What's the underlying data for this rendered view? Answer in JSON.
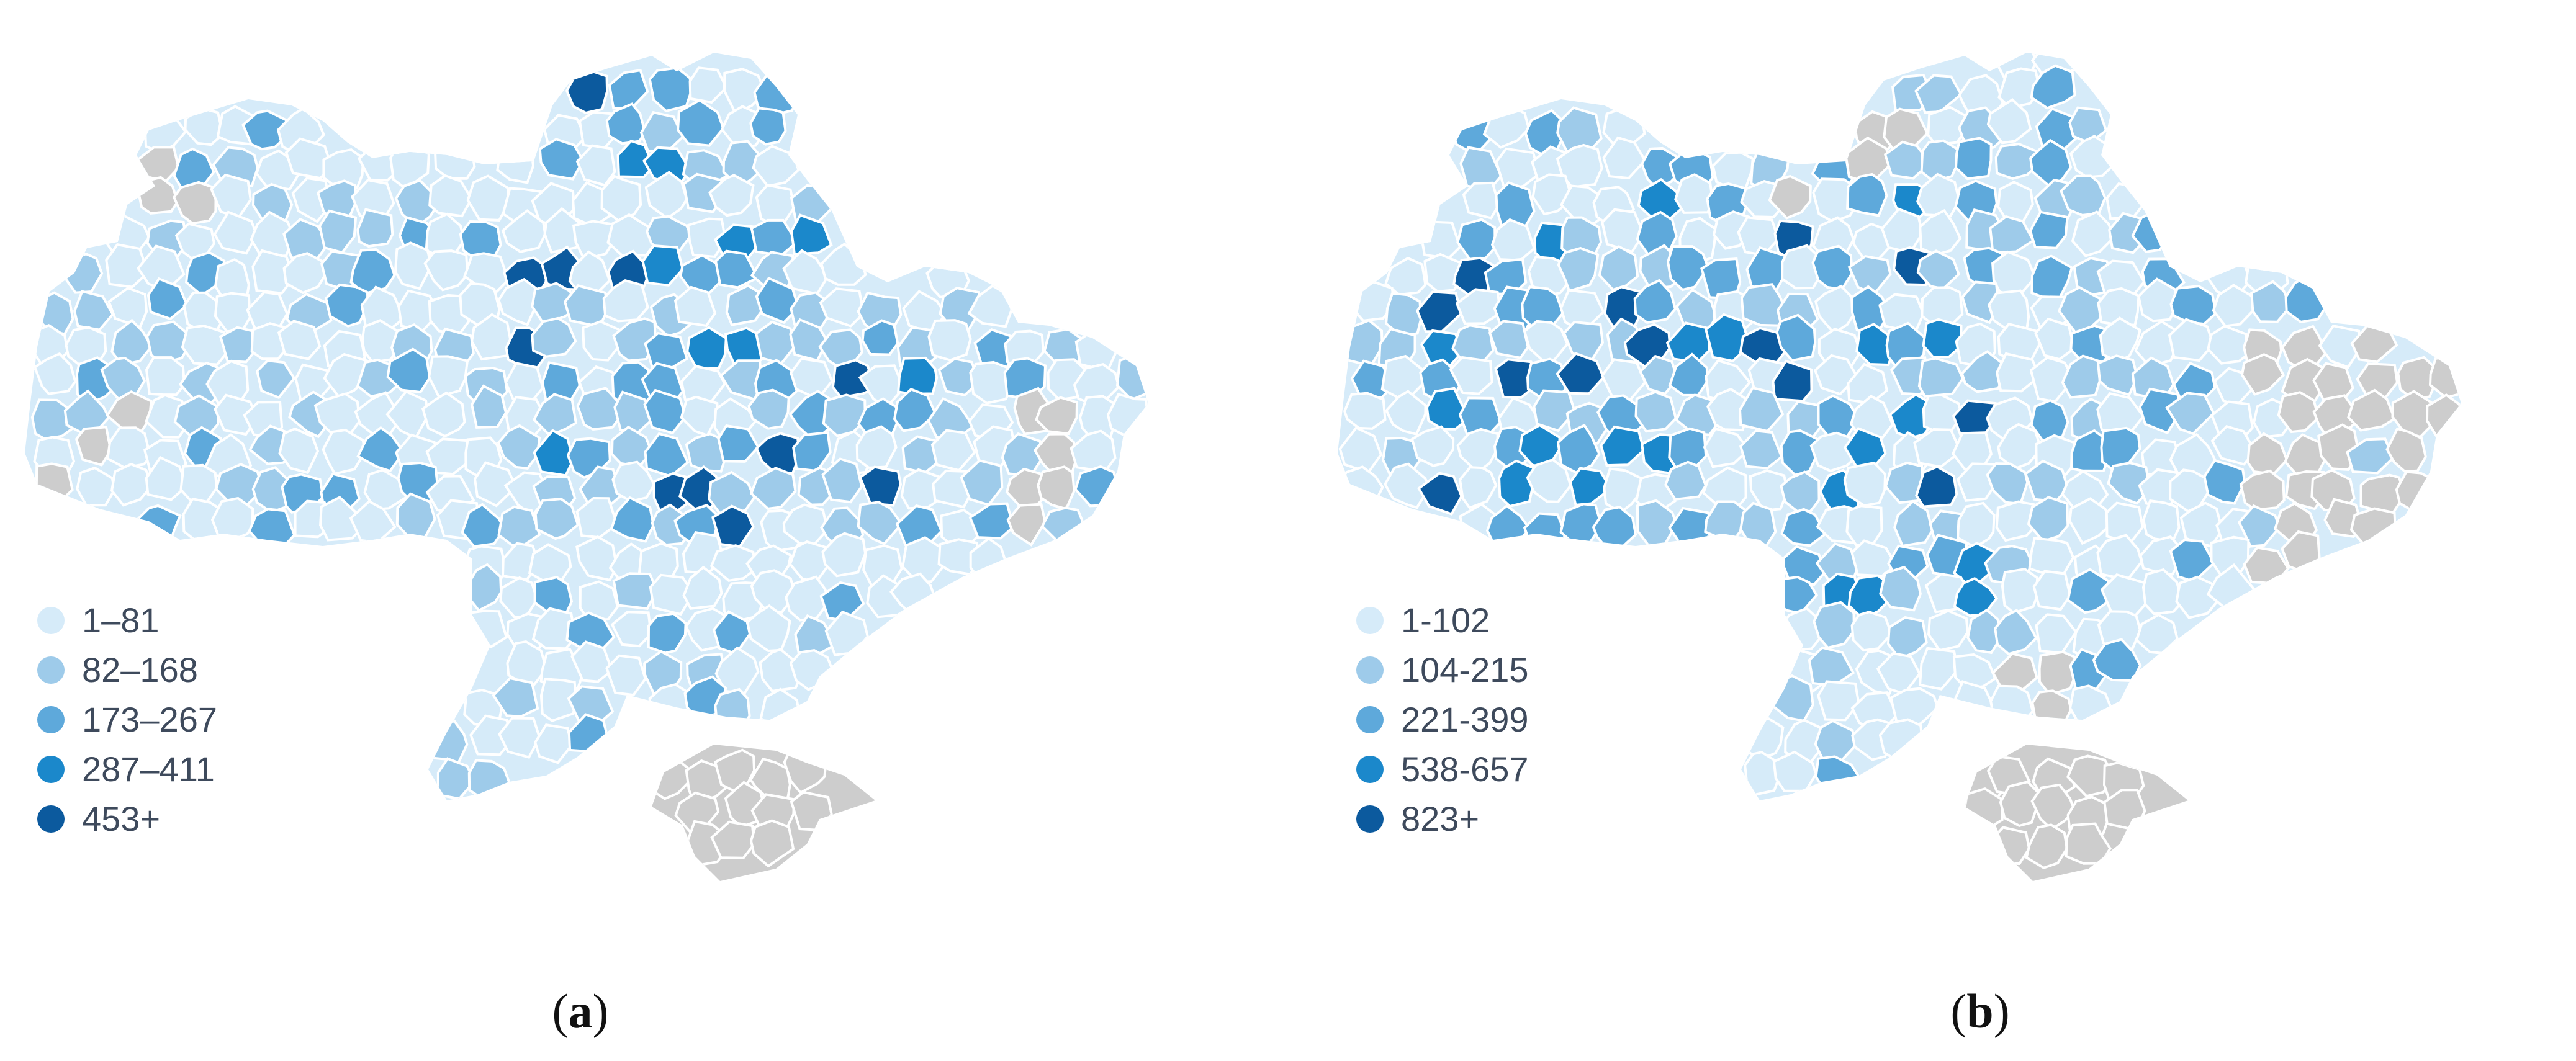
{
  "colors": {
    "no_data": "#cdcdcd",
    "border": "#ffffff",
    "classes": [
      "#d6ebf9",
      "#9ecbea",
      "#5ea9db",
      "#1b88cb",
      "#0c5a9e"
    ]
  },
  "panels": [
    {
      "id": "a",
      "caption_open": "(",
      "caption_letter": "a",
      "caption_close": ")",
      "legend": [
        {
          "label": "1–81"
        },
        {
          "label": "82–168"
        },
        {
          "label": "173–267"
        },
        {
          "label": "287–411"
        },
        {
          "label": "453+"
        }
      ]
    },
    {
      "id": "b",
      "caption_open": "(",
      "caption_letter": "b",
      "caption_close": ")",
      "legend": [
        {
          "label": "1-102"
        },
        {
          "label": "104-215"
        },
        {
          "label": "221-399"
        },
        {
          "label": "538-657"
        },
        {
          "label": "823+"
        }
      ]
    }
  ]
}
